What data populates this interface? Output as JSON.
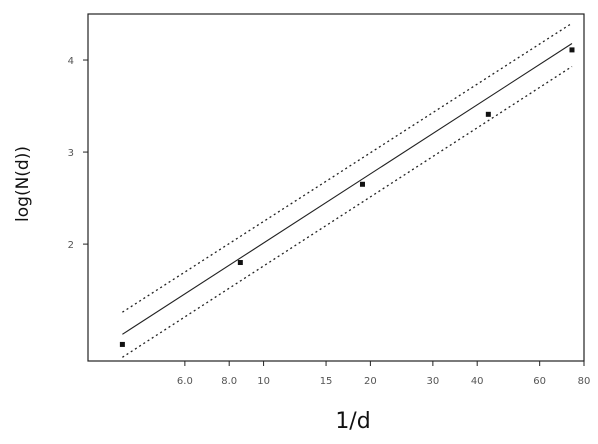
{
  "chart_data": {
    "type": "scatter",
    "title": "",
    "xlabel": "1/d",
    "ylabel": "log(N(d))",
    "x_scale": "log",
    "xlim": [
      3.2,
      80
    ],
    "ylim": [
      0.73,
      4.5
    ],
    "x_tick_labels": [
      "6.0",
      "8.0",
      "10",
      "15",
      "20",
      "30",
      "40",
      "60",
      "80"
    ],
    "x_tick_values": [
      6,
      8,
      10,
      15,
      20,
      30,
      40,
      60,
      80
    ],
    "y_tick_labels": [
      "2",
      "3",
      "4"
    ],
    "y_tick_values": [
      2,
      3,
      4
    ],
    "series": [
      {
        "kind": "points",
        "x": [
          4,
          8.6,
          19,
          43,
          74
        ],
        "y": [
          0.91,
          1.8,
          2.65,
          3.41,
          4.11
        ]
      },
      {
        "kind": "fit-line",
        "style": "solid",
        "x": [
          4,
          74
        ],
        "y": [
          1.02,
          4.18
        ]
      },
      {
        "kind": "upper-band",
        "style": "dotted",
        "x": [
          4,
          74
        ],
        "y": [
          1.26,
          4.4
        ]
      },
      {
        "kind": "lower-band",
        "style": "dotted",
        "x": [
          4,
          74
        ],
        "y": [
          0.77,
          3.93
        ]
      }
    ],
    "grid": false,
    "legend": "none"
  }
}
